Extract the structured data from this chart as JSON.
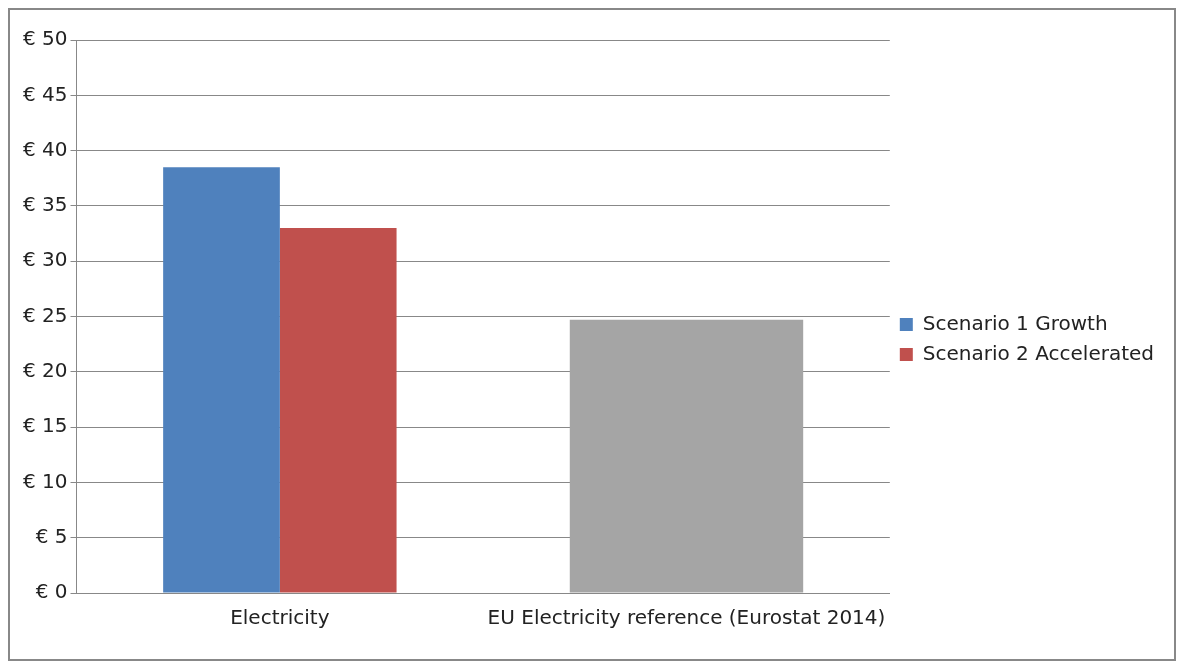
{
  "chart_data": {
    "type": "bar",
    "categories": [
      "Electricity",
      "EU Electricity reference (Eurostat 2014)"
    ],
    "series": [
      {
        "name": "Scenario 1 Growth",
        "color": "#4f81bd",
        "values": [
          38.5,
          null
        ]
      },
      {
        "name": "Scenario 2 Accelerated",
        "color": "#c0504d",
        "values": [
          33,
          null
        ]
      },
      {
        "color": "#a5a5a5",
        "values": [
          null,
          24.7
        ]
      }
    ],
    "ylim": [
      0,
      50
    ],
    "yticks": [
      {
        "value": 0,
        "label": "€ 0"
      },
      {
        "value": 5,
        "label": "€ 5"
      },
      {
        "value": 10,
        "label": "€ 10"
      },
      {
        "value": 15,
        "label": "€ 15"
      },
      {
        "value": 20,
        "label": "€ 20"
      },
      {
        "value": 25,
        "label": "€ 25"
      },
      {
        "value": 30,
        "label": "€ 30"
      },
      {
        "value": 35,
        "label": "€ 35"
      },
      {
        "value": 40,
        "label": "€ 40"
      },
      {
        "value": 45,
        "label": "€ 45"
      },
      {
        "value": 50,
        "label": "€ 50"
      }
    ],
    "grid": "y",
    "legend": "right"
  }
}
